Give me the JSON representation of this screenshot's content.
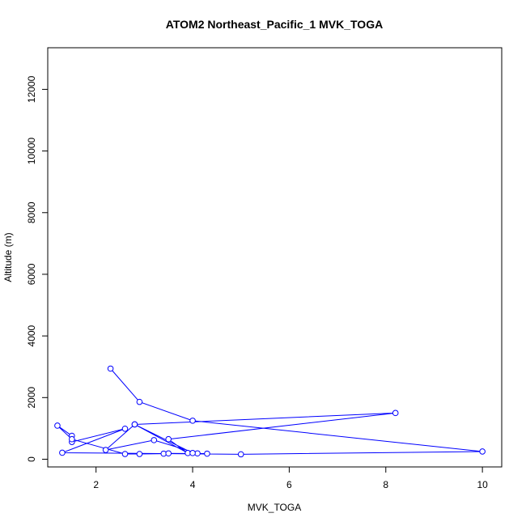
{
  "chart_data": {
    "type": "line",
    "title": "ATOM2 Northeast_Pacific_1 MVK_TOGA",
    "xlabel": "MVK_TOGA",
    "ylabel": "Altitude (m)",
    "xlim": [
      1.0,
      10.4
    ],
    "ylim": [
      -250,
      13350
    ],
    "xticks": [
      2,
      4,
      6,
      8,
      10
    ],
    "yticks": [
      0,
      2000,
      4000,
      6000,
      8000,
      10000,
      12000
    ],
    "xtick_labels": [
      "2",
      "4",
      "6",
      "8",
      "10"
    ],
    "ytick_labels": [
      "0",
      "2000",
      "4000",
      "6000",
      "8000",
      "10000",
      "12000"
    ],
    "grid": false,
    "marker": "open-circle",
    "series": [
      {
        "color": "#0000ff",
        "points": [
          {
            "x": 2.3,
            "y": 2940
          },
          {
            "x": 2.9,
            "y": 1860
          },
          {
            "x": 4.0,
            "y": 1250
          },
          {
            "x": 10.0,
            "y": 250
          },
          {
            "x": 5.0,
            "y": 160
          },
          {
            "x": 1.3,
            "y": 210
          },
          {
            "x": 2.6,
            "y": 990
          },
          {
            "x": 1.5,
            "y": 560
          },
          {
            "x": 1.5,
            "y": 760
          },
          {
            "x": 1.2,
            "y": 1090
          },
          {
            "x": 1.5,
            "y": 650
          },
          {
            "x": 2.6,
            "y": 170
          },
          {
            "x": 2.9,
            "y": 170
          },
          {
            "x": 3.4,
            "y": 180
          },
          {
            "x": 3.5,
            "y": 190
          },
          {
            "x": 4.3,
            "y": 180
          },
          {
            "x": 4.1,
            "y": 190
          },
          {
            "x": 3.2,
            "y": 620
          },
          {
            "x": 2.2,
            "y": 300
          },
          {
            "x": 2.8,
            "y": 1130
          },
          {
            "x": 3.9,
            "y": 200
          },
          {
            "x": 3.5,
            "y": 650
          },
          {
            "x": 8.2,
            "y": 1500
          },
          {
            "x": 2.8,
            "y": 1130
          },
          {
            "x": 4.0,
            "y": 200
          }
        ]
      }
    ]
  }
}
